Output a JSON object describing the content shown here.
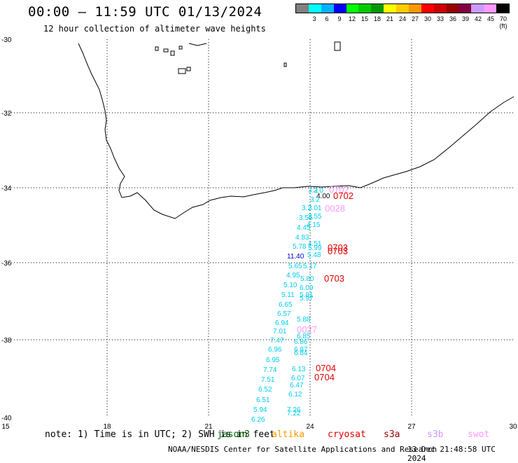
{
  "header": {
    "title": "00:00 – 11:59 UTC 01/13/2024",
    "subtitle": "12 hour collection of altimeter wave heights"
  },
  "legend": {
    "colors": [
      "#808080",
      "#00ffff",
      "#00b4ff",
      "#0000ff",
      "#00ff00",
      "#00cc00",
      "#009900",
      "#ffff00",
      "#ffcc00",
      "#ff9900",
      "#ff0000",
      "#cc0000",
      "#990000",
      "#800040",
      "#cc99ff",
      "#ff99ff",
      "#000000"
    ],
    "labels": [
      "",
      "3",
      "6",
      "9",
      "12",
      "15",
      "18",
      "21",
      "24",
      "27",
      "30",
      "33",
      "36",
      "39",
      "42",
      "45",
      "70 (ft)"
    ]
  },
  "axes": {
    "lat_labels": [
      "-30",
      "-32",
      "-34",
      "-36",
      "-38",
      "-40"
    ],
    "lon_labels": [
      "15",
      "18",
      "21",
      "24",
      "27",
      "30"
    ]
  },
  "observations": [
    {
      "label": "3.2",
      "color": "#00ccee"
    },
    {
      "label": "3.0",
      "color": "#00ccee"
    },
    {
      "label": "4.00",
      "color": "#000000"
    },
    {
      "label": "3.2",
      "color": "#00ccee"
    },
    {
      "label": "0702",
      "color": "#ff99ff"
    },
    {
      "label": "0702",
      "color": "#e00000"
    },
    {
      "label": "3.2",
      "color": "#00ccee"
    },
    {
      "label": "3.01",
      "color": "#00ccee"
    },
    {
      "label": "0028",
      "color": "#ff99ff"
    },
    {
      "label": "3.55",
      "color": "#00ccee"
    },
    {
      "label": "3.55",
      "color": "#00ccee"
    },
    {
      "label": "4.15",
      "color": "#00ccee"
    },
    {
      "label": "4.45",
      "color": "#00ccee"
    },
    {
      "label": "4.83",
      "color": "#00ccee"
    },
    {
      "label": "4.51",
      "color": "#00ccee"
    },
    {
      "label": "5.78",
      "color": "#00ccee"
    },
    {
      "label": "5.99",
      "color": "#00ccee"
    },
    {
      "label": "0703",
      "color": "#e00000"
    },
    {
      "label": "0703",
      "color": "#e00000"
    },
    {
      "label": "5.48",
      "color": "#00ccee"
    },
    {
      "label": "11.40",
      "color": "#0000cc"
    },
    {
      "label": "5.65",
      "color": "#00ccee"
    },
    {
      "label": "5.17",
      "color": "#00ccee"
    },
    {
      "label": "4.95",
      "color": "#00ccee"
    },
    {
      "label": "5.80",
      "color": "#00ccee"
    },
    {
      "label": "0703",
      "color": "#e00000"
    },
    {
      "label": "5.10",
      "color": "#00ccee"
    },
    {
      "label": "6.09",
      "color": "#00ccee"
    },
    {
      "label": "5.11",
      "color": "#00ccee"
    },
    {
      "label": "5.81",
      "color": "#00ccee"
    },
    {
      "label": "5.97",
      "color": "#00ccee"
    },
    {
      "label": "6.65",
      "color": "#00ccee"
    },
    {
      "label": "6.57",
      "color": "#00ccee"
    },
    {
      "label": "5.88",
      "color": "#00ccee"
    },
    {
      "label": "6.94",
      "color": "#00ccee"
    },
    {
      "label": "7.01",
      "color": "#00ccee"
    },
    {
      "label": "0027",
      "color": "#ff99ff"
    },
    {
      "label": "6.85",
      "color": "#00ccee"
    },
    {
      "label": "7.47",
      "color": "#00ccee"
    },
    {
      "label": "6.86",
      "color": "#00ccee"
    },
    {
      "label": "6.96",
      "color": "#00ccee"
    },
    {
      "label": "6.87",
      "color": "#00ccee"
    },
    {
      "label": "6.84",
      "color": "#00ccee"
    },
    {
      "label": "6.95",
      "color": "#00ccee"
    },
    {
      "label": "7.74",
      "color": "#00ccee"
    },
    {
      "label": "6.13",
      "color": "#00ccee"
    },
    {
      "label": "0704",
      "color": "#e00000"
    },
    {
      "label": "7.51",
      "color": "#00ccee"
    },
    {
      "label": "6.07",
      "color": "#00ccee"
    },
    {
      "label": "0704",
      "color": "#e00000"
    },
    {
      "label": "6.47",
      "color": "#00ccee"
    },
    {
      "label": "6.52",
      "color": "#00ccee"
    },
    {
      "label": "6.12",
      "color": "#00ccee"
    },
    {
      "label": "6.51",
      "color": "#00ccee"
    },
    {
      "label": "5.94",
      "color": "#00ccee"
    },
    {
      "label": "7.26",
      "color": "#00ccee"
    },
    {
      "label": "7.22",
      "color": "#00ccee"
    },
    {
      "label": "6.26",
      "color": "#00ccee"
    }
  ],
  "footer": {
    "note": "note: 1) Time is in UTC; 2) SWH is in feet",
    "satellites": [
      {
        "name": "jason3",
        "color": "#006600"
      },
      {
        "name": "altika",
        "color": "#ff9900"
      },
      {
        "name": "cryosat",
        "color": "#e00000"
      },
      {
        "name": "s3a",
        "color": "#990000"
      },
      {
        "name": "s3b",
        "color": "#cc99ff"
      },
      {
        "name": "swot",
        "color": "#ff99ff"
      }
    ],
    "credit": "NOAA/NESDIS Center for Satellite Applications and Research",
    "generated": "13 Dec 21:48:58 UTC 2024"
  }
}
